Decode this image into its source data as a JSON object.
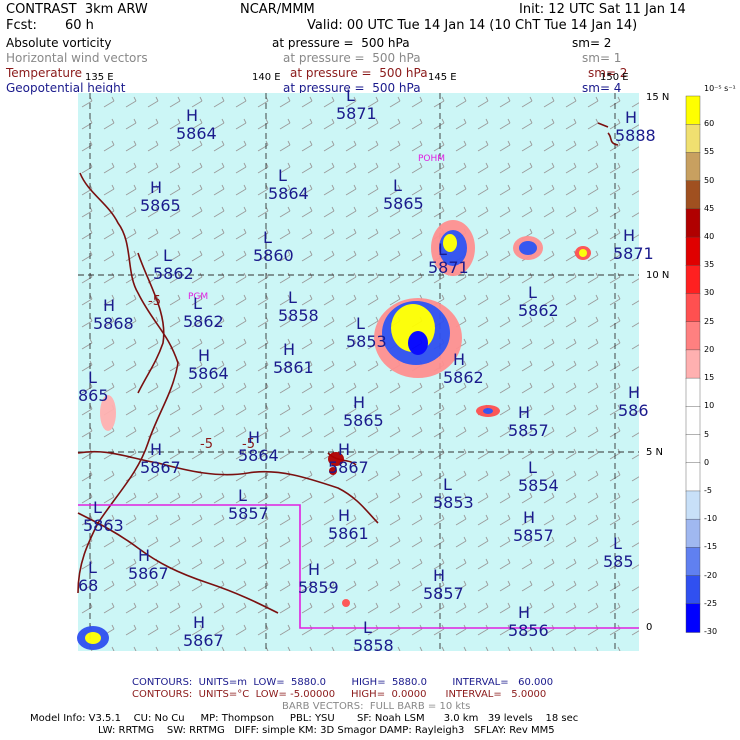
{
  "header": {
    "model": "CONTRAST  3km ARW",
    "org": "NCAR/MMM",
    "init": "Init: 12 UTC Sat 11 Jan 14",
    "fcst_label": "Fcst:",
    "fcst_value": "60 h",
    "valid": "Valid: 00 UTC Tue 14 Jan 14 (10 ChT Tue 14 Jan 14)"
  },
  "fields": [
    {
      "name": "Absolute vorticity",
      "pressure": "at pressure =  500 hPa",
      "sm": "sm= 2",
      "color": "#000000"
    },
    {
      "name": "Horizontal wind vectors",
      "pressure": "at pressure =  500 hPa",
      "sm": "sm= 1",
      "color": "#888888"
    },
    {
      "name": "Temperature",
      "pressure": "at pressure =  500 hPa",
      "sm": "sm= 2",
      "color": "#8b1a1a"
    },
    {
      "name": "Geopotential height",
      "pressure": "at pressure =  500 hPa",
      "sm": "sm= 4",
      "color": "#1a1a8c"
    }
  ],
  "axes": {
    "lon_labels": [
      "135 E",
      "140 E",
      "145 E",
      "150 E"
    ],
    "lat_labels": [
      "15 N",
      "10 N",
      "5 N",
      "0"
    ]
  },
  "map": {
    "stations": [
      "POHM",
      "PGM"
    ],
    "height_centers": [
      {
        "t": "H",
        "v": "5864"
      },
      {
        "t": "L",
        "v": "5864"
      },
      {
        "t": "L",
        "v": "5871"
      },
      {
        "t": "H",
        "v": "5865"
      },
      {
        "t": "L",
        "v": "5865"
      },
      {
        "t": "L",
        "v": "5860"
      },
      {
        "t": "L",
        "v": "5862"
      },
      {
        "t": "L",
        "v": "5871"
      },
      {
        "t": "H",
        "v": "5871"
      },
      {
        "t": "H",
        "v": "5868"
      },
      {
        "t": "L",
        "v": "5862"
      },
      {
        "t": "L",
        "v": "5858"
      },
      {
        "t": "L",
        "v": "5853"
      },
      {
        "t": "L",
        "v": "5862"
      },
      {
        "t": "H",
        "v": "5864"
      },
      {
        "t": "H",
        "v": "5861"
      },
      {
        "t": "H",
        "v": "5862"
      },
      {
        "t": "L",
        "v": "865"
      },
      {
        "t": "H",
        "v": "5865"
      },
      {
        "t": "H",
        "v": "5857"
      },
      {
        "t": "H",
        "v": "5864"
      },
      {
        "t": "H",
        "v": "5867"
      },
      {
        "t": "H",
        "v": "5867"
      },
      {
        "t": "L",
        "v": "5854"
      },
      {
        "t": "L",
        "v": "5857"
      },
      {
        "t": "L",
        "v": "5853"
      },
      {
        "t": "L",
        "v": "5863"
      },
      {
        "t": "H",
        "v": "5861"
      },
      {
        "t": "H",
        "v": "5857"
      },
      {
        "t": "L",
        "v": "585"
      },
      {
        "t": "H",
        "v": "5867"
      },
      {
        "t": "H",
        "v": "5859"
      },
      {
        "t": "H",
        "v": "5857"
      },
      {
        "t": "H",
        "v": "5856"
      },
      {
        "t": "H",
        "v": "5867"
      },
      {
        "t": "L",
        "v": "5858"
      },
      {
        "t": "H",
        "v": "5888"
      },
      {
        "t": "L",
        "v": "68"
      },
      {
        "t": "H",
        "v": "586"
      }
    ],
    "temp_labels": [
      "-5",
      "-5",
      "-5"
    ]
  },
  "colorbar": {
    "unit": "10⁻⁵ s⁻¹",
    "ticks": [
      "60",
      "55",
      "50",
      "45",
      "40",
      "35",
      "30",
      "25",
      "20",
      "15",
      "10",
      "5",
      "0",
      "-5",
      "-10",
      "-15",
      "-20",
      "-25",
      "-30"
    ],
    "colors": [
      "#ffff00",
      "#f0e070",
      "#c8a060",
      "#a05020",
      "#b00000",
      "#e00000",
      "#ff2020",
      "#ff5050",
      "#ff8080",
      "#ffb0b0",
      "#ffffff",
      "#ffffff",
      "#ffffff",
      "#ffffff",
      "#c8e0f8",
      "#a0b8f0",
      "#6080f0",
      "#3050f0",
      "#0000ff"
    ]
  },
  "footer": {
    "contours1": "CONTOURS:  UNITS=m  LOW=  5880.0        HIGH=  5880.0        INTERVAL=   60.000",
    "contours2": "CONTOURS:  UNITS=°C  LOW= -5.00000     HIGH=  0.0000      INTERVAL=   5.0000",
    "barbs": "BARB VECTORS:  FULL BARB = 10 kts",
    "model1": "Model Info: V3.5.1    CU: No Cu     MP: Thompson     PBL: YSU       SF: Noah LSM      3.0 km   39 levels    18 sec",
    "model2": "LW: RRTMG    SW: RRTMG   DIFF: simple KM: 3D Smagor DAMP: Rayleigh3   SFLAY: Rev MM5"
  }
}
